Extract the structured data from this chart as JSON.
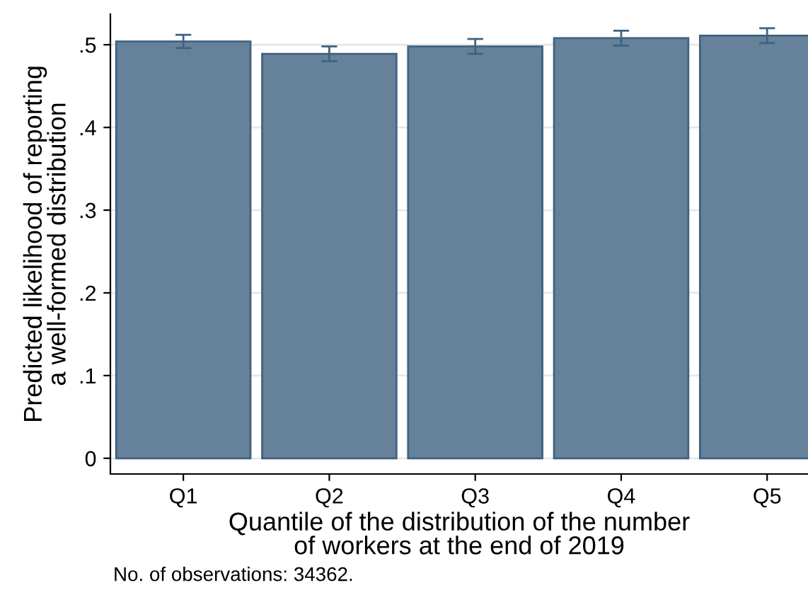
{
  "chart_data": {
    "type": "bar",
    "xlabel": "Quantile of the distribution of the number\nof workers at the end of 2019",
    "ylabel": "Predicted likelihood of reporting\na well-formed distribution",
    "categories": [
      "Q1",
      "Q2",
      "Q3",
      "Q4",
      "Q5"
    ],
    "values": [
      0.504,
      0.489,
      0.498,
      0.508,
      0.511
    ],
    "errors": [
      0.008,
      0.009,
      0.009,
      0.009,
      0.009
    ],
    "color": "#65829a",
    "ylim": [
      -0.019,
      0.537
    ],
    "yticks": [
      {
        "value": 0,
        "label": "0"
      },
      {
        "value": 0.1,
        "label": ".1"
      },
      {
        "value": 0.2,
        "label": ".2"
      },
      {
        "value": 0.3,
        "label": ".3"
      },
      {
        "value": 0.4,
        "label": ".4"
      },
      {
        "value": 0.5,
        "label": ".5"
      }
    ],
    "grid": "y",
    "annotations": [
      "No. of observations: 34362."
    ]
  }
}
